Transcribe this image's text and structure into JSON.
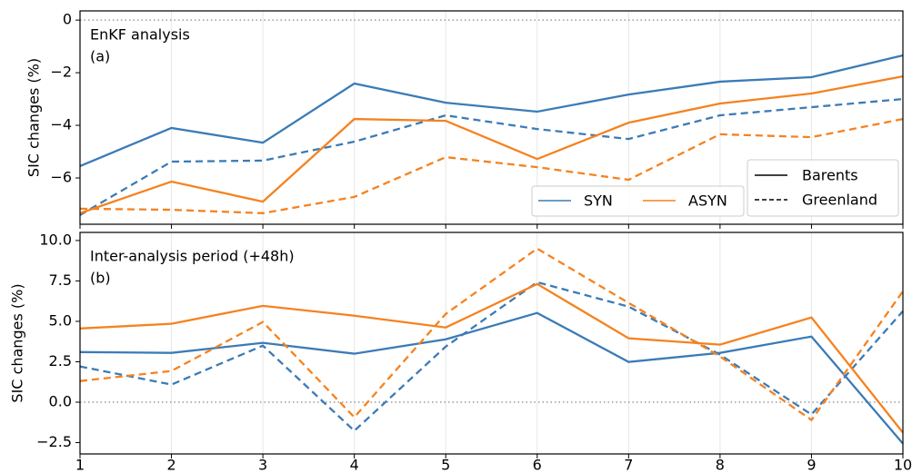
{
  "chart_data": [
    {
      "type": "line",
      "ylabel": "SIC changes (%)",
      "annotations": [
        "EnKF analysis",
        "(a)"
      ],
      "xlim": [
        1,
        10
      ],
      "xticks": [
        1,
        2,
        3,
        4,
        5,
        6,
        7,
        8,
        9,
        10
      ],
      "xtick_labels": false,
      "ylim": [
        -7.76,
        0.35
      ],
      "yticks": [
        0,
        {
          "value": -2,
          "label": "−2"
        },
        {
          "value": -4,
          "label": "−4"
        },
        {
          "value": -6,
          "label": "−6"
        }
      ],
      "grid": true,
      "zero_line": true,
      "groups": [
        {
          "name": "SYN",
          "color": "#3b7bb6",
          "series": [
            {
              "name": "Barents",
              "dash": false,
              "values": [
                -5.55,
                -4.1,
                -4.66,
                -2.41,
                -3.14,
                -3.48,
                -2.83,
                -2.34,
                -2.17,
                -1.34
              ]
            },
            {
              "name": "Greenland",
              "dash": true,
              "values": [
                -7.41,
                -5.38,
                -5.34,
                -4.62,
                -3.62,
                -4.14,
                -4.52,
                -3.62,
                -3.31,
                -3.0
              ]
            }
          ]
        },
        {
          "name": "ASYN",
          "color": "#f5821f",
          "series": [
            {
              "dash": false,
              "values": [
                -7.34,
                -6.14,
                -6.9,
                -3.76,
                -3.83,
                -5.28,
                -3.9,
                -3.17,
                -2.79,
                -2.14
              ]
            },
            {
              "dash": true,
              "values": [
                -7.17,
                -7.21,
                -7.34,
                -6.72,
                -5.21,
                -5.59,
                -6.07,
                -4.34,
                -4.45,
                -3.76
              ]
            }
          ]
        }
      ]
    },
    {
      "type": "line",
      "ylabel": "SIC changes (%)",
      "annotations": [
        "Inter-analysis period (+48h)",
        "(b)"
      ],
      "xlim": [
        1,
        10
      ],
      "xticks": [
        1,
        2,
        3,
        4,
        5,
        6,
        7,
        8,
        9,
        10
      ],
      "xtick_labels": true,
      "ylim": [
        -3.2,
        10.5
      ],
      "yticks": [
        {
          "value": 10,
          "label": "10.0"
        },
        {
          "value": 7.5,
          "label": "7.5"
        },
        {
          "value": 5,
          "label": "5.0"
        },
        {
          "value": 2.5,
          "label": "2.5"
        },
        {
          "value": 0,
          "label": "0.0"
        },
        {
          "value": -2.5,
          "label": "−2.5"
        }
      ],
      "grid": true,
      "zero_line": true,
      "groups": [
        {
          "color": "#3b7bb6",
          "series": [
            {
              "dash": false,
              "values": [
                3.1,
                3.05,
                3.67,
                3.0,
                3.89,
                5.52,
                2.49,
                3.05,
                4.06,
                -2.56
              ]
            },
            {
              "dash": true,
              "values": [
                2.21,
                1.09,
                3.5,
                -1.77,
                3.44,
                7.42,
                5.91,
                2.94,
                -0.76,
                5.63
              ]
            }
          ]
        },
        {
          "color": "#f5821f",
          "series": [
            {
              "dash": false,
              "values": [
                4.56,
                4.85,
                5.96,
                5.35,
                4.62,
                7.31,
                3.95,
                3.56,
                5.24,
                -1.88
              ]
            },
            {
              "dash": true,
              "values": [
                1.31,
                1.93,
                4.96,
                -0.93,
                5.46,
                9.5,
                6.14,
                2.83,
                -1.1,
                6.86
              ]
            }
          ]
        }
      ]
    }
  ]
}
